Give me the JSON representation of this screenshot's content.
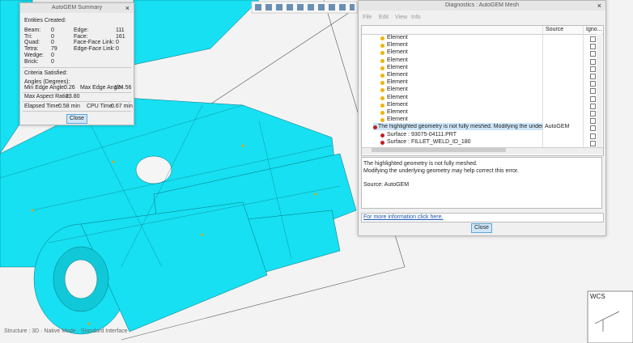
{
  "summary": {
    "title": "AutoGEM Summary",
    "entities_heading": "Entities Created:",
    "entities": [
      [
        "Beam:",
        "0",
        "Edge:",
        "111"
      ],
      [
        "Tri:",
        "0",
        "Face:",
        "161"
      ],
      [
        "Quad:",
        "0",
        "Face-Face Link:",
        "0"
      ],
      [
        "Tetra:",
        "79",
        "Edge-Face Link:",
        "0"
      ],
      [
        "Wedge:",
        "0"
      ],
      [
        "Brick:",
        "0"
      ]
    ],
    "criteria_heading": "Criteria Satisfied:",
    "angles_heading": "Angles (Degrees):",
    "min_edge_label": "Min Edge Angle:",
    "min_edge_value": "0.26",
    "max_edge_label": "Max Edge Angle:",
    "max_edge_value": "174.56",
    "aspect_label": "Max Aspect Ratio:",
    "aspect_value": "23.80",
    "elapsed_label": "Elapsed Time:",
    "elapsed_value": "0.58 min",
    "cpu_label": "CPU Time:",
    "cpu_value": "0.67 min",
    "close": "Close"
  },
  "diagnostics": {
    "title": "Diagnostics : AutoGEM Mesh",
    "menu": [
      "File",
      "Edit",
      "View",
      "Info"
    ],
    "columns": [
      "Source",
      "Igno..."
    ],
    "elements": [
      "Element",
      "Element",
      "Element",
      "Element",
      "Element",
      "Element",
      "Element",
      "Element",
      "Element",
      "Element",
      "Element",
      "Element"
    ],
    "error_row": {
      "text": "The highlighted geometry is not fully meshed. Modifying the underlying geo",
      "source": "AutoGEM"
    },
    "surfaces": [
      "Surface : 93075-04111.PRT",
      "Surface : FILLET_WELD_ID_180"
    ],
    "details": [
      "The highlighted geometry is not fully meshed.",
      "Modifying the underlying geometry may help correct this error.",
      "Source: AutoGEM"
    ],
    "link": "For more information click here.",
    "close": "Close"
  },
  "status": "Structure : 3D · Native Mode · Standard Interface",
  "wcs": "WCS"
}
